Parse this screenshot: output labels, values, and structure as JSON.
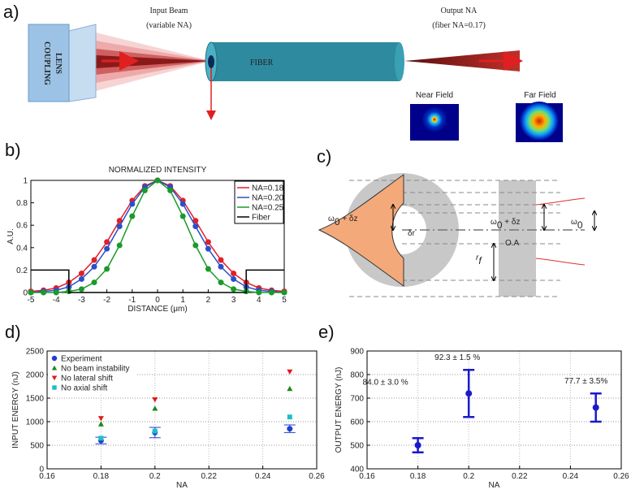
{
  "panel_labels": [
    "a)",
    "b)",
    "c)",
    "d)",
    "e)"
  ],
  "diagram_a": {
    "input_beam": [
      "Input Beam",
      "(variable NA)"
    ],
    "output_na": [
      "Output NA",
      "(fiber NA=0.17)"
    ],
    "lens": [
      "COUPLING",
      "LENS"
    ],
    "fiber": "FIBER",
    "near_field": "Near Field",
    "far_field": "Far Field"
  },
  "diagram_c": {
    "w_left": [
      "ω",
      "0",
      " + δz"
    ],
    "dr": "δr",
    "w_right": [
      "ω",
      "0",
      " + δz"
    ],
    "w0": [
      "ω",
      "0"
    ],
    "rf": [
      "r",
      "f"
    ],
    "oa": "O.A"
  },
  "chart_data": [
    {
      "type": "line",
      "title": "NORMALIZED INTENSITY",
      "xlabel": "DISTANCE (μm)",
      "ylabel": "A.U.",
      "xlim": [
        -5,
        5
      ],
      "xticks": [
        -5,
        -4,
        -3,
        -2,
        -1,
        0,
        1,
        2,
        3,
        4,
        5
      ],
      "ylim": [
        0,
        1
      ],
      "yticks": [
        0,
        0.2,
        0.4,
        0.6,
        0.8,
        1
      ],
      "grid": false,
      "legend": "upper-right",
      "series": [
        {
          "name": "NA=0.18",
          "color": "#e0202a",
          "marker": "circle",
          "x": [
            -5,
            -4.5,
            -4,
            -3.5,
            -3,
            -2.5,
            -2,
            -1.5,
            -1,
            -0.5,
            0,
            0.5,
            1,
            1.5,
            2,
            2.5,
            3,
            3.5,
            4,
            4.5,
            5
          ],
          "values": [
            0.01,
            0.02,
            0.04,
            0.09,
            0.17,
            0.29,
            0.45,
            0.64,
            0.82,
            0.95,
            1,
            0.95,
            0.82,
            0.64,
            0.45,
            0.29,
            0.17,
            0.09,
            0.04,
            0.02,
            0.01
          ]
        },
        {
          "name": "NA=0.20",
          "color": "#2a4fc8",
          "marker": "circle",
          "x": [
            -5,
            -4.5,
            -4,
            -3.5,
            -3,
            -2.5,
            -2,
            -1.5,
            -1,
            -0.5,
            0,
            0.5,
            1,
            1.5,
            2,
            2.5,
            3,
            3.5,
            4,
            4.5,
            5
          ],
          "values": [
            0,
            0.01,
            0.02,
            0.05,
            0.12,
            0.23,
            0.39,
            0.59,
            0.79,
            0.94,
            1,
            0.94,
            0.79,
            0.59,
            0.39,
            0.23,
            0.12,
            0.05,
            0.02,
            0.01,
            0
          ]
        },
        {
          "name": "NA=0.25",
          "color": "#1a9a2a",
          "marker": "circle",
          "x": [
            -5,
            -4.5,
            -4,
            -3.5,
            -3,
            -2.5,
            -2,
            -1.5,
            -1,
            -0.5,
            0,
            0.5,
            1,
            1.5,
            2,
            2.5,
            3,
            3.5,
            4,
            4.5,
            5
          ],
          "values": [
            0,
            0,
            0,
            0.01,
            0.03,
            0.09,
            0.21,
            0.42,
            0.68,
            0.91,
            1,
            0.91,
            0.68,
            0.42,
            0.21,
            0.09,
            0.03,
            0.01,
            0,
            0,
            0
          ]
        },
        {
          "name": "Fiber",
          "color": "#000000",
          "x": [
            -5,
            -3.5,
            -3.5,
            3.5,
            3.5,
            5
          ],
          "values": [
            0.2,
            0.2,
            0,
            0,
            0.2,
            0.2
          ]
        }
      ]
    },
    {
      "type": "scatter",
      "xlabel": "NA",
      "ylabel": "INPUT ENERGY (nJ)",
      "xlim": [
        0.16,
        0.26
      ],
      "xticks": [
        0.16,
        0.18,
        0.2,
        0.22,
        0.24,
        0.26
      ],
      "ylim": [
        0,
        2500
      ],
      "yticks": [
        0,
        500,
        1000,
        1500,
        2000,
        2500
      ],
      "grid": true,
      "legend": "upper-left",
      "x": [
        0.18,
        0.2,
        0.25
      ],
      "series": [
        {
          "name": "Experiment",
          "color": "#1f3fd0",
          "marker": "circle",
          "values": [
            600,
            770,
            850
          ],
          "errors": [
            70,
            110,
            80
          ]
        },
        {
          "name": "No beam instability",
          "color": "#1a8a1a",
          "marker": "triangle-up",
          "values": [
            950,
            1280,
            1700
          ]
        },
        {
          "name": "No lateral shift",
          "color": "#e01a1a",
          "marker": "triangle-down",
          "values": [
            1070,
            1470,
            2060
          ]
        },
        {
          "name": "No axial shift",
          "color": "#19c0c8",
          "marker": "square",
          "values": [
            650,
            800,
            1100
          ]
        }
      ]
    },
    {
      "type": "scatter",
      "xlabel": "NA",
      "ylabel": "OUTPUT ENERGY (nJ)",
      "xlim": [
        0.16,
        0.26
      ],
      "xticks": [
        0.16,
        0.18,
        0.2,
        0.22,
        0.24,
        0.26
      ],
      "ylim": [
        400,
        900
      ],
      "yticks": [
        400,
        500,
        600,
        700,
        800,
        900
      ],
      "grid": true,
      "x": [
        0.18,
        0.2,
        0.25
      ],
      "series": [
        {
          "color": "#1a1acc",
          "marker": "circle",
          "values": [
            500,
            720,
            660
          ],
          "errors": [
            30,
            100,
            60
          ]
        }
      ],
      "annotations": [
        "84.0 ± 3.0 %",
        "92.3 ± 1.5 %",
        "77.7 ± 3.5%"
      ]
    }
  ]
}
